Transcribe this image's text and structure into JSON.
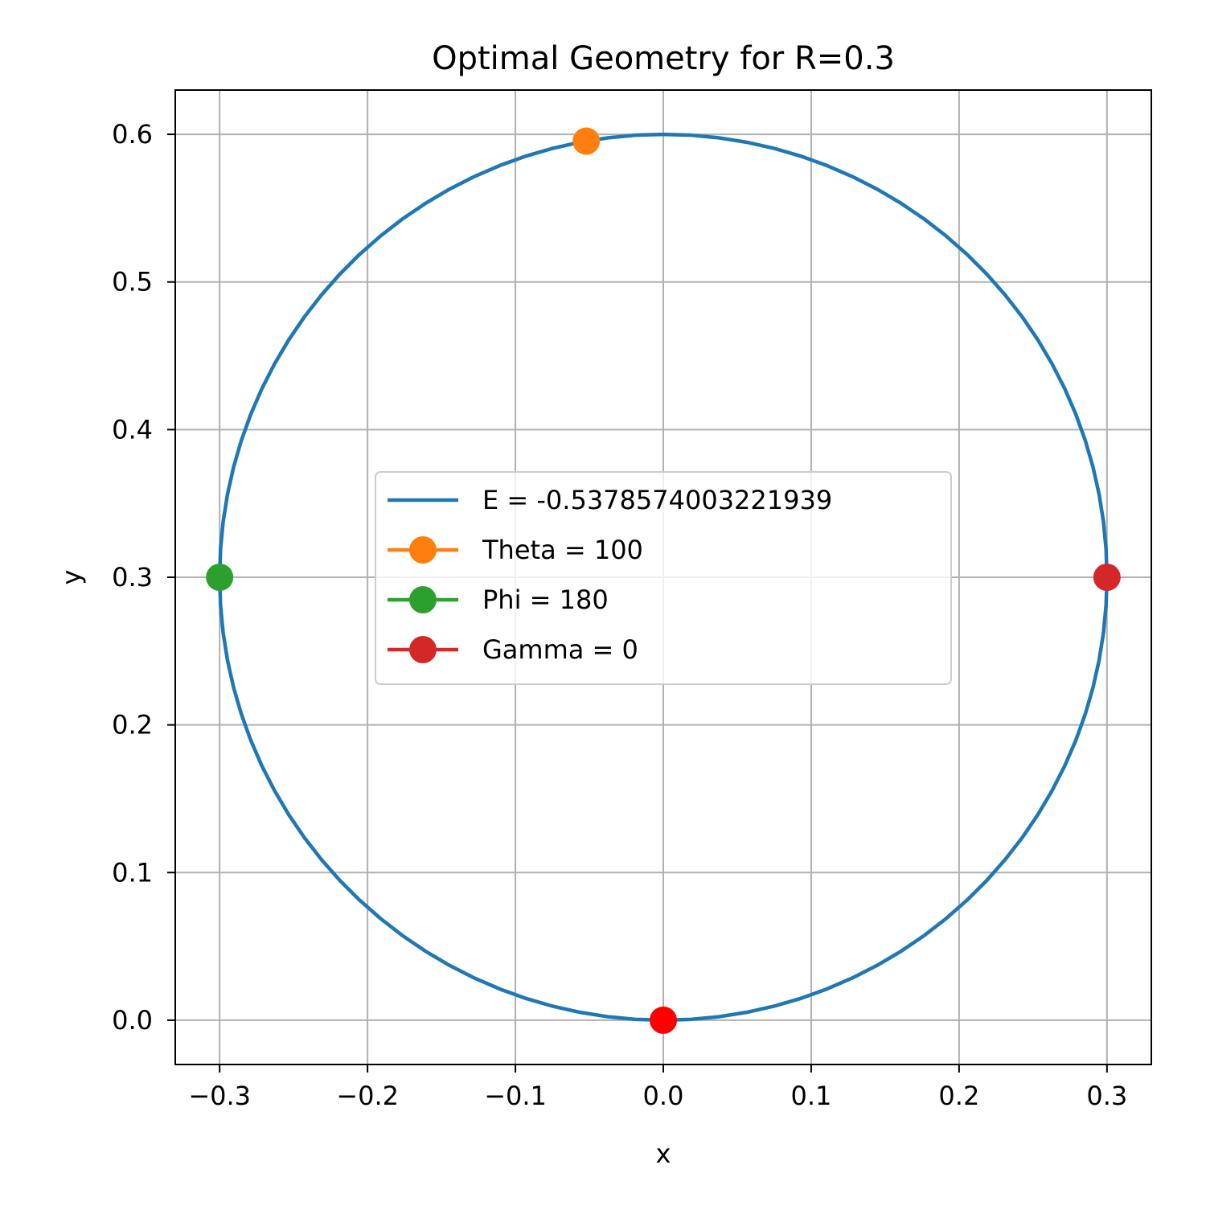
{
  "chart_data": {
    "type": "line",
    "title": "Optimal Geometry for R=0.3",
    "xlabel": "x",
    "ylabel": "y",
    "xlim": [
      -0.33,
      0.33
    ],
    "ylim": [
      -0.03,
      0.63
    ],
    "xticks": [
      -0.3,
      -0.2,
      -0.1,
      0.0,
      0.1,
      0.2,
      0.3
    ],
    "xtick_labels": [
      "−0.3",
      "−0.2",
      "−0.1",
      "0.0",
      "0.1",
      "0.2",
      "0.3"
    ],
    "yticks": [
      0.0,
      0.1,
      0.2,
      0.3,
      0.4,
      0.5,
      0.6
    ],
    "ytick_labels": [
      "0.0",
      "0.1",
      "0.2",
      "0.3",
      "0.4",
      "0.5",
      "0.6"
    ],
    "grid": true,
    "legend_position": "center",
    "series": [
      {
        "name": "E = -0.5378574003221939",
        "type": "circle",
        "center": [
          0.0,
          0.3
        ],
        "radius": 0.3,
        "color": "#1f77b4"
      },
      {
        "name": "Theta = 100",
        "type": "point",
        "x": -0.0521,
        "y": 0.5954,
        "color": "#ff7f0e"
      },
      {
        "name": "Phi = 180",
        "type": "point",
        "x": -0.3,
        "y": 0.3,
        "color": "#2ca02c"
      },
      {
        "name": "Gamma = 0",
        "type": "point",
        "x": 0.3,
        "y": 0.3,
        "color": "#d62728"
      }
    ],
    "extra_points": [
      {
        "x": 0.0,
        "y": 0.0,
        "color": "#ff0000"
      }
    ]
  }
}
